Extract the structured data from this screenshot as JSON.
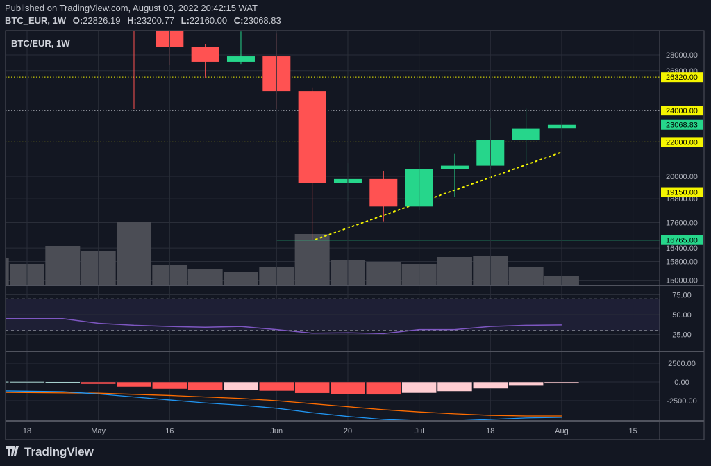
{
  "header": {
    "published": "Published on TradingView.com, August 03, 2022 20:42:15 WAT",
    "symbol": "BTC_EUR, 1W",
    "o_label": "O:",
    "o": "22826.19",
    "h_label": "H:",
    "h": "23200.77",
    "l_label": "L:",
    "l": "22160.00",
    "c_label": "C:",
    "c": "23068.83"
  },
  "legend": "BTC/EUR, 1W",
  "footer": {
    "brand": "TradingView",
    "logo_mark": "17"
  },
  "colors": {
    "up": "#26d68b",
    "down": "#ff5252",
    "level": "#f5f500",
    "volume": "#4b4d55",
    "rsi": "#7e57c2",
    "macd": "#2196f3",
    "signal": "#ff6d00",
    "hist_up": "#b2dfdb",
    "hist_down_falling": "#ff5252",
    "hist_down_rising": "#ffcdd2"
  },
  "chart_data": {
    "type": "candlestick",
    "title": "BTC/EUR, 1W",
    "price_scale": "log",
    "x_ticks": [
      {
        "week": 0,
        "label": "18"
      },
      {
        "week": 2,
        "label": "May"
      },
      {
        "week": 4,
        "label": "16"
      },
      {
        "week": 7,
        "label": "Jun"
      },
      {
        "week": 9,
        "label": "20"
      },
      {
        "week": 11,
        "label": "Jul"
      },
      {
        "week": 13,
        "label": "18"
      },
      {
        "week": 15,
        "label": "Aug"
      },
      {
        "week": 17,
        "label": "15"
      }
    ],
    "y_ticks": [
      "28000.00",
      "26800.00",
      "20000.00",
      "18800.00",
      "17600.00",
      "16400.00",
      "15800.00",
      "15000.00"
    ],
    "candles": [
      {
        "week": 3,
        "o": 31000,
        "h": 32500,
        "l": 24100,
        "c": 30200
      },
      {
        "week": 4,
        "o": 29900,
        "h": 30500,
        "l": 27250,
        "c": 28650
      },
      {
        "week": 5,
        "o": 28650,
        "h": 28870,
        "l": 26280,
        "c": 27470
      },
      {
        "week": 6,
        "o": 27470,
        "h": 29880,
        "l": 27300,
        "c": 27890
      },
      {
        "week": 7,
        "o": 27890,
        "h": 29700,
        "l": 24100,
        "c": 25330
      },
      {
        "week": 8,
        "o": 25330,
        "h": 25590,
        "l": 16765,
        "c": 19650
      },
      {
        "week": 9,
        "o": 19650,
        "h": 20740,
        "l": 18650,
        "c": 19850
      },
      {
        "week": 10,
        "o": 19850,
        "h": 20310,
        "l": 17660,
        "c": 18400
      },
      {
        "week": 11,
        "o": 18400,
        "h": 22020,
        "l": 18200,
        "c": 20420
      },
      {
        "week": 12,
        "o": 20420,
        "h": 21280,
        "l": 18900,
        "c": 20600
      },
      {
        "week": 13,
        "o": 20600,
        "h": 23500,
        "l": 20400,
        "c": 22130
      },
      {
        "week": 14,
        "o": 22130,
        "h": 24120,
        "l": 20420,
        "c": 22810
      },
      {
        "week": 15,
        "o": 22826.19,
        "h": 23200.77,
        "l": 22160.0,
        "c": 23068.83
      }
    ],
    "volume_relative": [
      {
        "week": -1,
        "v": 39
      },
      {
        "week": 0,
        "v": 30
      },
      {
        "week": 1,
        "v": 56
      },
      {
        "week": 2,
        "v": 49
      },
      {
        "week": 3,
        "v": 91
      },
      {
        "week": 4,
        "v": 29
      },
      {
        "week": 5,
        "v": 22
      },
      {
        "week": 6,
        "v": 18
      },
      {
        "week": 7,
        "v": 26
      },
      {
        "week": 8,
        "v": 73
      },
      {
        "week": 9,
        "v": 36
      },
      {
        "week": 10,
        "v": 33
      },
      {
        "week": 11,
        "v": 30
      },
      {
        "week": 12,
        "v": 40
      },
      {
        "week": 13,
        "v": 41
      },
      {
        "week": 14,
        "v": 26
      },
      {
        "week": 15,
        "v": 13
      }
    ],
    "levels": [
      {
        "price": 26320,
        "label": "26320.00",
        "style": "dotted",
        "color": "#f5f500",
        "tag_bg": "#f5f500",
        "tag_fg": "#000000"
      },
      {
        "price": 24000,
        "label": "24000.00",
        "style": "dotted",
        "color": "#d1d4dc",
        "tag_bg": "#f5f500",
        "tag_fg": "#000000"
      },
      {
        "price": 22000,
        "label": "22000.00",
        "style": "dotted",
        "color": "#f5f500",
        "tag_bg": "#f5f500",
        "tag_fg": "#000000"
      },
      {
        "price": 19150,
        "label": "19150.00",
        "style": "dotted",
        "color": "#f5f500",
        "tag_bg": "#f5f500",
        "tag_fg": "#000000"
      },
      {
        "price": 16765,
        "label": "16765.00",
        "style": "solid",
        "color": "#26d68b",
        "tag_bg": "#26d68b",
        "tag_fg": "#000000",
        "from_week": 7
      }
    ],
    "last_price": {
      "price": 23068.83,
      "label": "23068.83"
    },
    "trendline": {
      "from": {
        "week": 8.1,
        "price": 16800
      },
      "to": {
        "week": 14.95,
        "price": 21350
      }
    },
    "rsi": {
      "y_ticks": [
        "75.00",
        "50.00",
        "25.00"
      ],
      "bands": [
        70,
        30
      ],
      "points": [
        {
          "week": -0.6,
          "v": 45
        },
        {
          "week": 1,
          "v": 45
        },
        {
          "week": 2,
          "v": 39
        },
        {
          "week": 3,
          "v": 36.5
        },
        {
          "week": 4,
          "v": 35
        },
        {
          "week": 5,
          "v": 34
        },
        {
          "week": 6,
          "v": 35
        },
        {
          "week": 7,
          "v": 31
        },
        {
          "week": 8,
          "v": 26.5
        },
        {
          "week": 9,
          "v": 27
        },
        {
          "week": 10,
          "v": 26
        },
        {
          "week": 11,
          "v": 31
        },
        {
          "week": 12,
          "v": 31
        },
        {
          "week": 13,
          "v": 35
        },
        {
          "week": 14,
          "v": 36.5
        },
        {
          "week": 15,
          "v": 37
        }
      ]
    },
    "macd": {
      "y_ticks": [
        {
          "v": 2500,
          "label": "2500.00"
        },
        {
          "v": 0,
          "label": "0.00"
        },
        {
          "v": -2500,
          "label": "-2500.00"
        }
      ],
      "histogram": [
        {
          "week": -1,
          "v": 60
        },
        {
          "week": 0,
          "v": 50
        },
        {
          "week": 1,
          "v": 30
        },
        {
          "week": 2,
          "v": -280
        },
        {
          "week": 3,
          "v": -650
        },
        {
          "week": 4,
          "v": -930
        },
        {
          "week": 5,
          "v": -1110
        },
        {
          "week": 6,
          "v": -1110
        },
        {
          "week": 7,
          "v": -1200
        },
        {
          "week": 8,
          "v": -1500
        },
        {
          "week": 9,
          "v": -1650
        },
        {
          "week": 10,
          "v": -1700
        },
        {
          "week": 11,
          "v": -1480
        },
        {
          "week": 12,
          "v": -1250
        },
        {
          "week": 13,
          "v": -880
        },
        {
          "week": 14,
          "v": -520
        },
        {
          "week": 15,
          "v": -200
        }
      ],
      "macd_line": [
        {
          "week": -0.6,
          "v": -1200
        },
        {
          "week": 1,
          "v": -1300
        },
        {
          "week": 2,
          "v": -1600
        },
        {
          "week": 3,
          "v": -2000
        },
        {
          "week": 4,
          "v": -2400
        },
        {
          "week": 5,
          "v": -2800
        },
        {
          "week": 6,
          "v": -3100
        },
        {
          "week": 7,
          "v": -3500
        },
        {
          "week": 8,
          "v": -4100
        },
        {
          "week": 9,
          "v": -4600
        },
        {
          "week": 10,
          "v": -5000
        },
        {
          "week": 11,
          "v": -5200
        },
        {
          "week": 12,
          "v": -5200
        },
        {
          "week": 13,
          "v": -5000
        },
        {
          "week": 14,
          "v": -4800
        },
        {
          "week": 15,
          "v": -4720
        }
      ],
      "signal_line": [
        {
          "week": -0.6,
          "v": -1400
        },
        {
          "week": 2,
          "v": -1500
        },
        {
          "week": 4,
          "v": -1800
        },
        {
          "week": 5,
          "v": -2000
        },
        {
          "week": 6,
          "v": -2200
        },
        {
          "week": 7,
          "v": -2500
        },
        {
          "week": 8,
          "v": -2900
        },
        {
          "week": 9,
          "v": -3300
        },
        {
          "week": 10,
          "v": -3700
        },
        {
          "week": 11,
          "v": -4000
        },
        {
          "week": 12,
          "v": -4250
        },
        {
          "week": 13,
          "v": -4450
        },
        {
          "week": 14,
          "v": -4540
        },
        {
          "week": 15,
          "v": -4540
        }
      ]
    }
  }
}
